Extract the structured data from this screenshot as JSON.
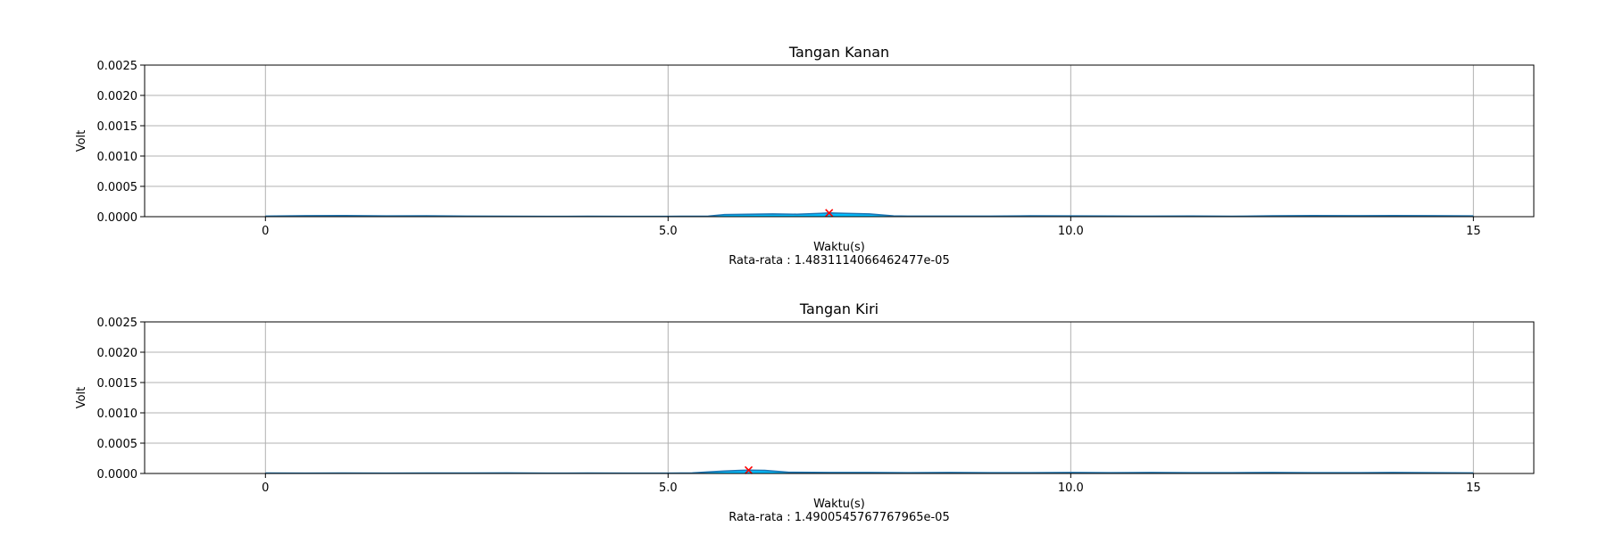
{
  "chart_data": [
    {
      "type": "area",
      "title": "Tangan Kanan",
      "xlabel": "Waktu(s)",
      "ylabel": "Volt",
      "footer": "Rata-rata : 1.4831114066462477e-05",
      "xlim": [
        -1.5,
        15.75
      ],
      "ylim": [
        0,
        0.0025
      ],
      "x_ticks": [
        0,
        5,
        10,
        15
      ],
      "x_tick_labels": [
        "0",
        "5.0",
        "10.0",
        "15"
      ],
      "y_ticks": [
        0,
        0.0005,
        0.001,
        0.0015,
        0.002,
        0.0025
      ],
      "y_tick_labels": [
        "0.0000",
        "0.0005",
        "0.0010",
        "0.0015",
        "0.0020",
        "0.0025"
      ],
      "grid": true,
      "line_color": "#1f77b4",
      "fill_color": "#00bfff",
      "marker_color": "#ff0000",
      "series": [
        {
          "x": [
            0,
            0.5,
            1.0,
            1.5,
            2.0,
            2.5,
            3.0,
            3.5,
            4.0,
            4.5,
            5.0,
            5.5,
            5.7,
            6.0,
            6.3,
            6.6,
            6.9,
            7.0,
            7.2,
            7.5,
            7.8,
            8.0,
            8.5,
            9.0,
            9.5,
            10.0,
            10.5,
            11.0,
            11.5,
            12.0,
            12.5,
            13.0,
            13.5,
            14.0,
            14.5,
            15.0
          ],
          "y": [
            8e-06,
            1.5e-05,
            1.8e-05,
            1.2e-05,
            1.4e-05,
            8e-06,
            6e-06,
            5e-06,
            6e-06,
            5e-06,
            5e-06,
            8e-06,
            3.5e-05,
            4e-05,
            4.5e-05,
            4e-05,
            5.5e-05,
            6.2e-05,
            5.5e-05,
            4.5e-05,
            1.2e-05,
            8e-06,
            8e-06,
            9e-06,
            1.4e-05,
            1.2e-05,
            1e-05,
            8e-06,
            1e-05,
            6e-06,
            1.4e-05,
            1.8e-05,
            1.6e-05,
            1.8e-05,
            1.6e-05,
            1.2e-05
          ]
        }
      ],
      "peak": {
        "x": 7.0,
        "y": 6.2e-05
      }
    },
    {
      "type": "area",
      "title": "Tangan Kiri",
      "xlabel": "Waktu(s)",
      "ylabel": "Volt",
      "footer": "Rata-rata : 1.4900545767767965e-05",
      "xlim": [
        -1.5,
        15.75
      ],
      "ylim": [
        0,
        0.0025
      ],
      "x_ticks": [
        0,
        5,
        10,
        15
      ],
      "x_tick_labels": [
        "0",
        "5.0",
        "10.0",
        "15"
      ],
      "y_ticks": [
        0,
        0.0005,
        0.001,
        0.0015,
        0.002,
        0.0025
      ],
      "y_tick_labels": [
        "0.0000",
        "0.0005",
        "0.0010",
        "0.0015",
        "0.0020",
        "0.0025"
      ],
      "grid": true,
      "line_color": "#1f77b4",
      "fill_color": "#00bfff",
      "marker_color": "#ff0000",
      "series": [
        {
          "x": [
            0,
            0.5,
            1.0,
            1.5,
            2.0,
            2.5,
            3.0,
            3.5,
            4.0,
            4.5,
            5.0,
            5.3,
            5.5,
            5.7,
            5.9,
            6.0,
            6.2,
            6.5,
            6.8,
            7.0,
            7.5,
            8.0,
            8.5,
            9.0,
            9.5,
            10.0,
            10.5,
            11.0,
            11.5,
            12.0,
            12.5,
            13.0,
            13.5,
            14.0,
            14.5,
            15.0
          ],
          "y": [
            6e-06,
            5e-06,
            6e-06,
            5e-06,
            6e-06,
            6e-06,
            8e-06,
            5e-06,
            6e-06,
            5e-06,
            5e-06,
            8e-06,
            2.5e-05,
            4e-05,
            5e-05,
            5.5e-05,
            5e-05,
            2e-05,
            1.8e-05,
            1.5e-05,
            1.5e-05,
            1.2e-05,
            1.5e-05,
            1.2e-05,
            1.2e-05,
            1.5e-05,
            1.2e-05,
            1.5e-05,
            1.2e-05,
            1.2e-05,
            1.5e-05,
            1.2e-05,
            1.2e-05,
            1.5e-05,
            1.2e-05,
            8e-06
          ]
        }
      ],
      "peak": {
        "x": 6.0,
        "y": 5.5e-05
      }
    }
  ]
}
